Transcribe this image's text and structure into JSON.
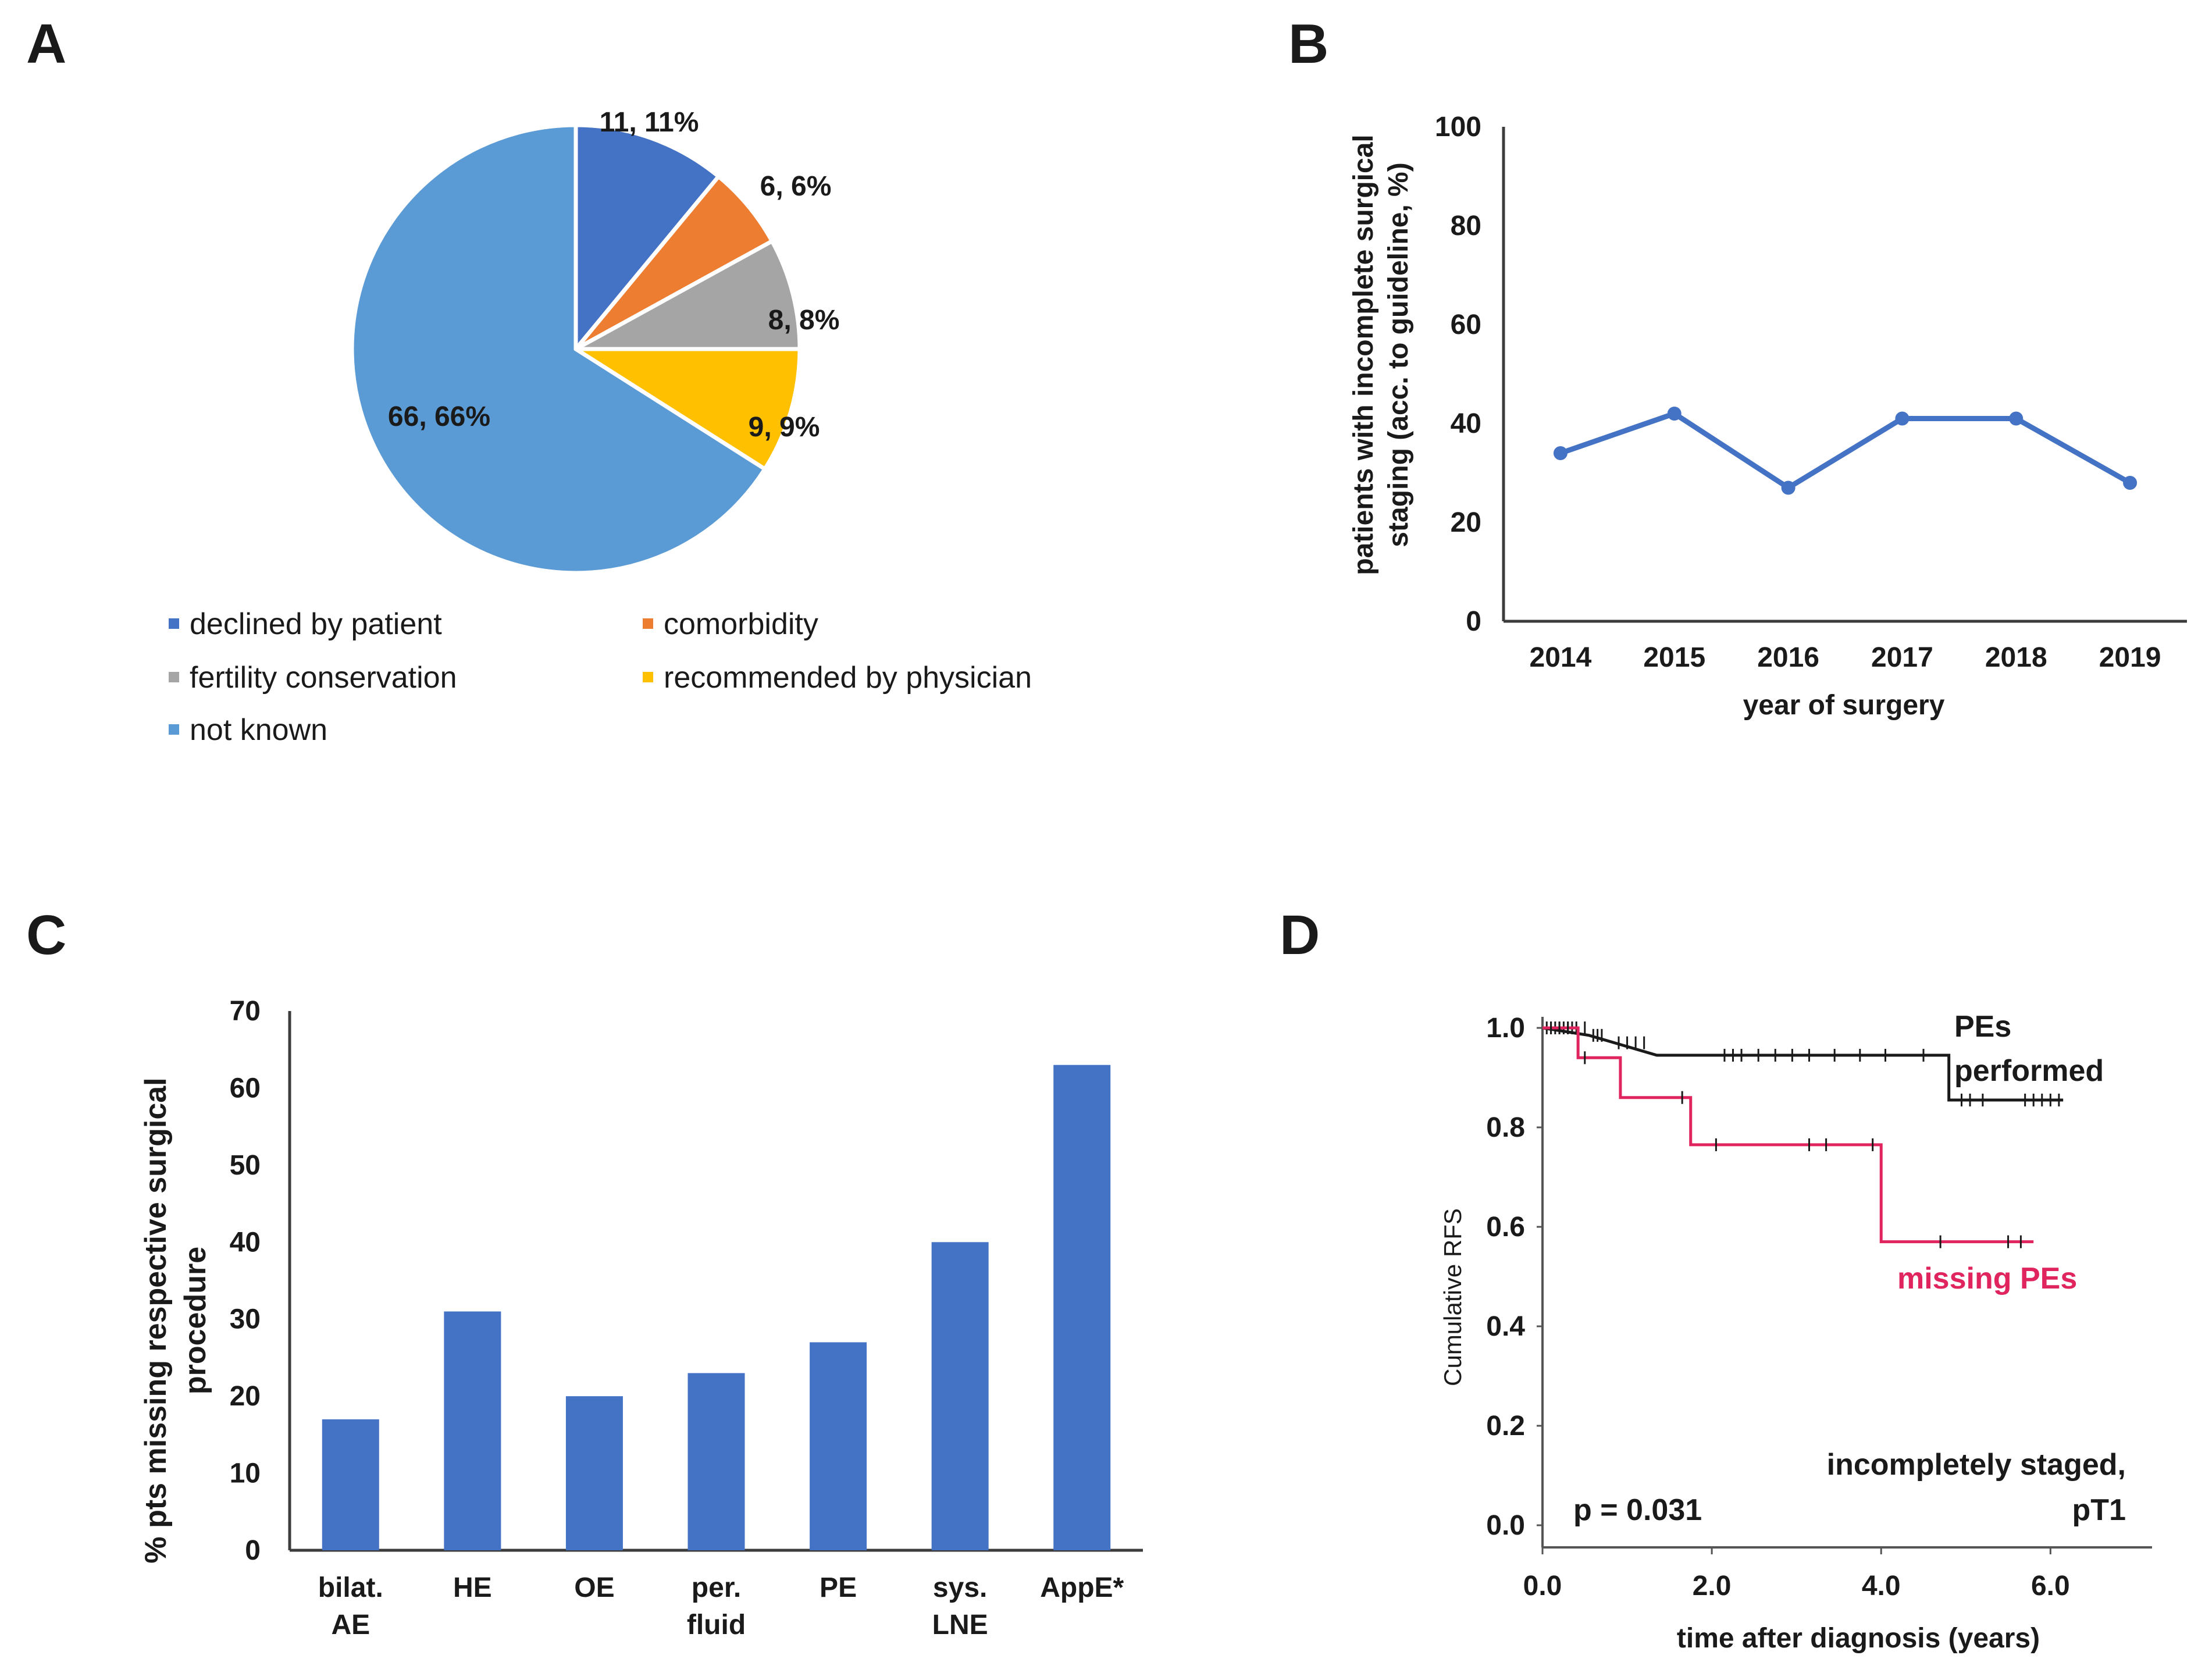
{
  "colors": {
    "blue": "#4472c4",
    "orange": "#ed7d31",
    "gray": "#a5a5a5",
    "yellow": "#ffc000",
    "lightblue": "#5b9bd5",
    "black": "#1a1a1a",
    "red": "#e0245e",
    "axis": "#3c3c3c"
  },
  "panels": {
    "A": "A",
    "B": "B",
    "C": "C",
    "D": "D"
  },
  "chart_data": [
    {
      "panel": "A",
      "type": "pie",
      "slices": [
        {
          "name": "declined by patient",
          "value": 11,
          "label": "11, 11%",
          "color": "#4472c4"
        },
        {
          "name": "comorbidity",
          "value": 6,
          "label": "6, 6%",
          "color": "#ed7d31"
        },
        {
          "name": "fertility conservation",
          "value": 8,
          "label": "8, 8%",
          "color": "#a5a5a5"
        },
        {
          "name": "recommended by physician",
          "value": 9,
          "label": "9, 9%",
          "color": "#ffc000"
        },
        {
          "name": "not known",
          "value": 66,
          "label": "66, 66%",
          "color": "#5b9bd5"
        }
      ],
      "legend": "bottom"
    },
    {
      "panel": "B",
      "type": "line",
      "x": [
        "2014",
        "2015",
        "2016",
        "2017",
        "2018",
        "2019"
      ],
      "series": [
        {
          "name": "incomplete surgical staging",
          "values": [
            34,
            42,
            27,
            41,
            41,
            28
          ],
          "color": "#4472c4"
        }
      ],
      "ylim": [
        0,
        100
      ],
      "yticks": [
        "0",
        "20",
        "40",
        "60",
        "80",
        "100"
      ],
      "xlabel": "year of surgery",
      "ylabel_lines": [
        "patients with incomplete surgical",
        "staging (acc. to guideline, %)"
      ]
    },
    {
      "panel": "C",
      "type": "bar",
      "categories": [
        [
          "bilat.",
          "AE"
        ],
        [
          "HE"
        ],
        [
          "OE"
        ],
        [
          "per.",
          "fluid"
        ],
        [
          "PE"
        ],
        [
          "sys.",
          "LNE"
        ],
        [
          "AppE*"
        ]
      ],
      "values": [
        17,
        31,
        20,
        23,
        27,
        40,
        63
      ],
      "color": "#4472c4",
      "ylim": [
        0,
        70
      ],
      "yticks": [
        "0",
        "10",
        "20",
        "30",
        "40",
        "50",
        "60",
        "70"
      ],
      "ylabel_lines": [
        "% pts missing respective surgical",
        "procedure"
      ]
    },
    {
      "panel": "D",
      "type": "line",
      "subtype": "kaplan-meier",
      "xlim": [
        0,
        7.2
      ],
      "ylim": [
        0,
        1.0
      ],
      "xticks": [
        "0.0",
        "2.0",
        "4.0",
        "6.0"
      ],
      "yticks": [
        "0.0",
        "0.2",
        "0.4",
        "0.6",
        "0.8",
        "1.0"
      ],
      "xlabel": "time after diagnosis (years)",
      "ylabel": "Cumulative RFS",
      "series": [
        {
          "name": "PEs performed",
          "label_lines": [
            "PEs",
            "performed"
          ],
          "color": "#1a1a1a",
          "steps": [
            [
              0,
              1.0
            ],
            [
              0.55,
              0.985
            ],
            [
              0.85,
              0.97
            ],
            [
              1.35,
              0.945
            ],
            [
              4.8,
              0.945
            ],
            [
              4.8,
              0.855
            ],
            [
              6.15,
              0.855
            ]
          ],
          "censor_times": [
            0.05,
            0.1,
            0.15,
            0.2,
            0.25,
            0.3,
            0.35,
            0.4,
            0.5,
            0.6,
            0.65,
            0.7,
            0.9,
            1.0,
            1.1,
            1.2,
            2.15,
            2.25,
            2.35,
            2.55,
            2.75,
            2.95,
            3.15,
            3.45,
            3.75,
            4.05,
            4.5,
            4.95,
            5.05,
            5.2,
            5.7,
            5.8,
            5.9,
            6.0,
            6.1
          ]
        },
        {
          "name": "missing PEs",
          "label_lines": [
            "missing PEs"
          ],
          "color": "#e0245e",
          "steps": [
            [
              0,
              1.0
            ],
            [
              0.42,
              1.0
            ],
            [
              0.42,
              0.94
            ],
            [
              0.92,
              0.94
            ],
            [
              0.92,
              0.86
            ],
            [
              1.75,
              0.86
            ],
            [
              1.75,
              0.765
            ],
            [
              4.0,
              0.765
            ],
            [
              4.0,
              0.57
            ],
            [
              5.8,
              0.57
            ]
          ],
          "censor_times": [
            0.1,
            0.2,
            0.3,
            0.5,
            1.65,
            2.05,
            3.15,
            3.35,
            3.9,
            4.7,
            5.5,
            5.65
          ]
        }
      ],
      "annotations": {
        "pvalue": "p = 0.031",
        "group_lines": [
          "incompletely staged,",
          "pT1"
        ]
      }
    }
  ]
}
